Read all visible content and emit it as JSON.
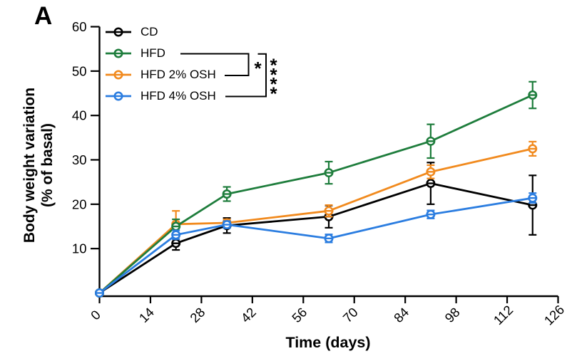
{
  "panel_label": "A",
  "axes": {
    "y_label_line1": "Body weight variation",
    "y_label_line2": "(% of basal)",
    "x_label": "Time (days)",
    "y_ticks": [
      10,
      20,
      30,
      40,
      50,
      60
    ],
    "x_ticks": [
      0,
      14,
      28,
      42,
      56,
      70,
      84,
      98,
      112,
      126
    ],
    "y_range": [
      0,
      60
    ],
    "x_range": [
      0,
      126
    ]
  },
  "legend": {
    "entries": [
      {
        "label": "CD",
        "color": "#000000"
      },
      {
        "label": "HFD",
        "color": "#1e7d3c"
      },
      {
        "label": "HFD 2% OSH",
        "color": "#f18a1e"
      },
      {
        "label": "HFD 4% OSH",
        "color": "#2b7de0"
      }
    ]
  },
  "significance": [
    {
      "comparison": "HFD vs HFD 2% OSH",
      "stars": "*"
    },
    {
      "comparison": "HFD vs HFD 4% OSH",
      "stars": "****"
    }
  ],
  "chart_data": {
    "type": "line",
    "title": "",
    "xlabel": "Time (days)",
    "ylabel": "Body weight variation (% of basal)",
    "x": [
      0,
      21,
      35,
      63,
      91,
      119
    ],
    "xlim": [
      0,
      126
    ],
    "ylim": [
      0,
      60
    ],
    "grid": false,
    "legend_position": "top-left-inside",
    "marker": "open-circle-with-dash",
    "error_bars": true,
    "series": [
      {
        "name": "CD",
        "color": "#000000",
        "values": [
          0,
          11.2,
          15.2,
          17.2,
          24.7,
          19.8
        ],
        "errors": [
          0,
          1.5,
          1.7,
          2.5,
          4.7,
          6.7
        ]
      },
      {
        "name": "HFD",
        "color": "#1e7d3c",
        "values": [
          0,
          15.0,
          22.3,
          27.1,
          34.2,
          44.6
        ],
        "errors": [
          0,
          1.6,
          1.6,
          2.5,
          3.8,
          3.0
        ]
      },
      {
        "name": "HFD 2% OSH",
        "color": "#f18a1e",
        "values": [
          0,
          15.5,
          15.8,
          18.5,
          27.3,
          32.5
        ],
        "errors": [
          0,
          3.0,
          0.8,
          1.3,
          1.5,
          1.6
        ]
      },
      {
        "name": "HFD 4% OSH",
        "color": "#2b7de0",
        "values": [
          0,
          13.1,
          15.4,
          12.3,
          17.7,
          21.4
        ],
        "errors": [
          0,
          1.0,
          0.8,
          0.9,
          0.9,
          1.1
        ]
      }
    ]
  }
}
